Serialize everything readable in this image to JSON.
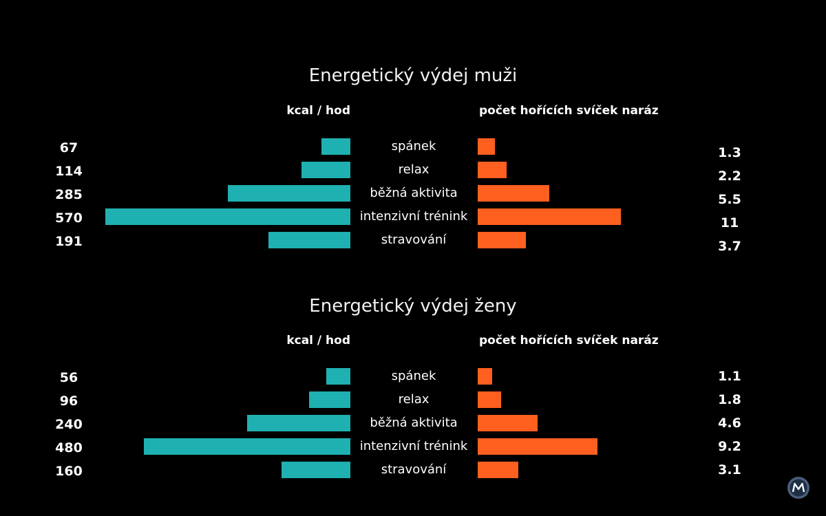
{
  "chart_data": [
    {
      "type": "bar",
      "title": "Energetický výdej muži",
      "left_header": "kcal / hod",
      "right_header": "počet hořících svíček naráz",
      "categories": [
        "spánek",
        "relax",
        "běžná aktivita",
        "intenzivní trénink",
        "stravování"
      ],
      "series": [
        {
          "name": "kcal / hod",
          "values": [
            67,
            114,
            285,
            570,
            191
          ],
          "labels": [
            "67",
            "114",
            "285",
            "570",
            "191"
          ],
          "color": "#1fb1b1"
        },
        {
          "name": "počet hořících svíček naráz",
          "values": [
            1.3,
            2.2,
            5.5,
            11,
            3.7
          ],
          "labels": [
            "1.3",
            "2.2",
            "5.5",
            "11",
            "3.7"
          ],
          "color": "#ff5f1f"
        }
      ]
    },
    {
      "type": "bar",
      "title": "Energetický výdej ženy",
      "left_header": "kcal / hod",
      "right_header": "počet hořících svíček naráz",
      "categories": [
        "spánek",
        "relax",
        "běžná aktivita",
        "intenzivní trénink",
        "stravování"
      ],
      "series": [
        {
          "name": "kcal / hod",
          "values": [
            56,
            96,
            240,
            480,
            160
          ],
          "labels": [
            "56",
            "96",
            "240",
            "480",
            "160"
          ],
          "color": "#1fb1b1"
        },
        {
          "name": "počet hořících svíček naráz",
          "values": [
            1.1,
            1.8,
            4.6,
            9.2,
            3.1
          ],
          "labels": [
            "1.1",
            "1.8",
            "4.6",
            "9.2",
            "3.1"
          ],
          "color": "#ff5f1f"
        }
      ]
    }
  ]
}
